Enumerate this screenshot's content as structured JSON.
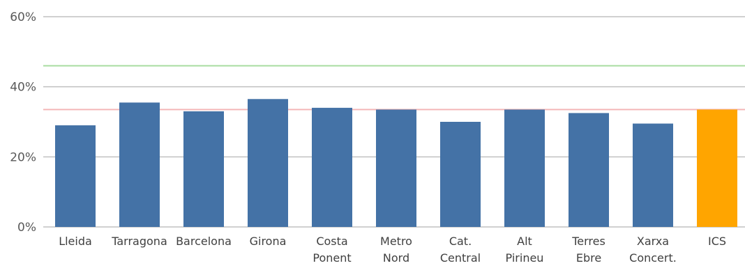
{
  "chart_data": {
    "type": "bar",
    "categories": [
      [
        "Lleida"
      ],
      [
        "Tarragona"
      ],
      [
        "Barcelona"
      ],
      [
        "Girona"
      ],
      [
        "Costa",
        "Ponent"
      ],
      [
        "Metro",
        "Nord"
      ],
      [
        "Cat.",
        "Central"
      ],
      [
        "Alt",
        "Pirineu"
      ],
      [
        "Terres",
        "Ebre"
      ],
      [
        "Xarxa",
        "Concert."
      ],
      [
        "ICS"
      ]
    ],
    "values": [
      29,
      35.5,
      33,
      36.5,
      34,
      33.5,
      30,
      33.5,
      32.5,
      29.5,
      33.5
    ],
    "bar_colors": [
      "#4472a6",
      "#4472a6",
      "#4472a6",
      "#4472a6",
      "#4472a6",
      "#4472a6",
      "#4472a6",
      "#4472a6",
      "#4472a6",
      "#4472a6",
      "#ffa500"
    ],
    "ylim": [
      0,
      60
    ],
    "yticks": [
      0,
      20,
      40,
      60
    ],
    "ytick_labels": [
      "0%",
      "20%",
      "40%",
      "60%"
    ],
    "reference_lines": [
      {
        "value": 46,
        "color": "#a8dca0"
      },
      {
        "value": 33.5,
        "color": "#f4b6b8"
      }
    ],
    "grid": true,
    "gridline_color": "#c0c0c0",
    "xlabel": "",
    "ylabel": "",
    "title": ""
  }
}
